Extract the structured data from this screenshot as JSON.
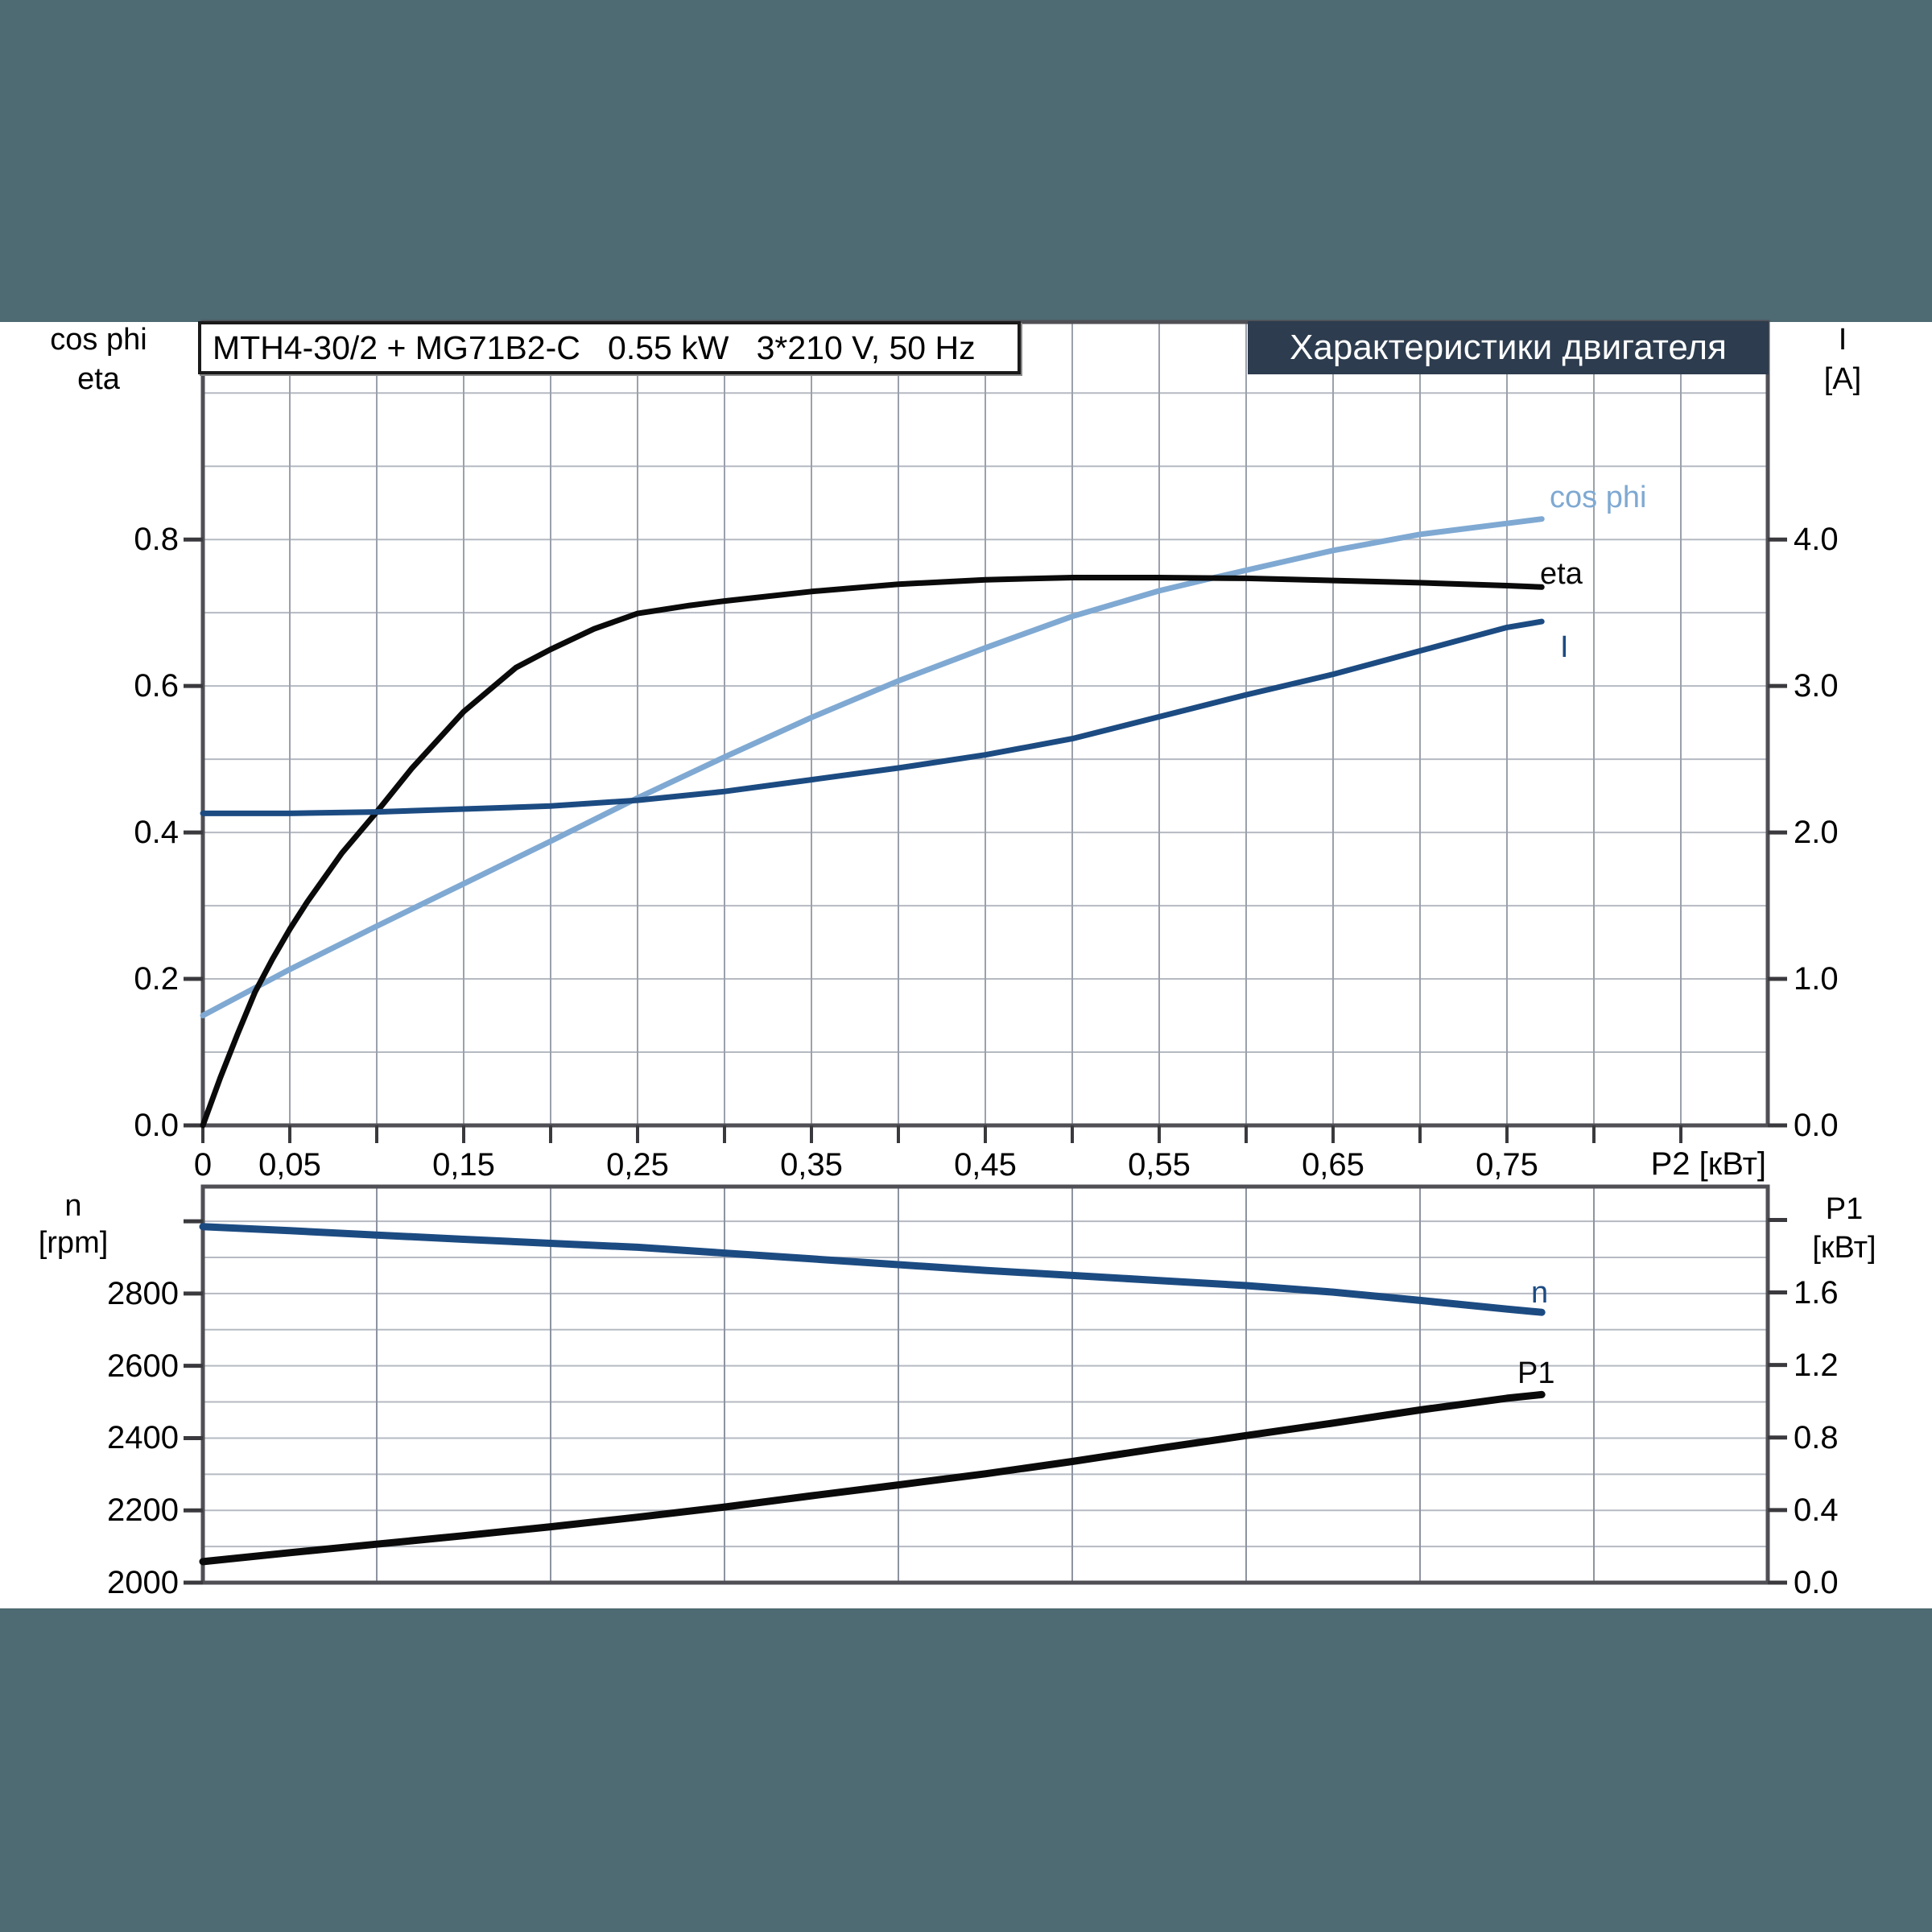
{
  "colors": {
    "background": "#4e6a72",
    "content_bg": "#ffffff",
    "banner_bg": "#2d3c4e",
    "banner_text": "#ffffff",
    "frame": "#4f4f55",
    "grid": "#9ba1ab",
    "grid_light": "#b5bac2",
    "tick": "#3a3a3e",
    "eta_curve": "#0a0a0a",
    "cos_phi_curve": "#7fa9d2",
    "current_curve": "#1c4b82",
    "speed_curve": "#1c4b82",
    "p1_curve": "#0a0a0a"
  },
  "header": {
    "title_box": "MTH4-30/2 + MG71B2-C   0.55 kW   3*210 V, 50 Hz",
    "banner": "Характеристики двигателя"
  },
  "chart_data": [
    {
      "id": "motor-characteristics",
      "type": "line",
      "title": "Характеристики двигателя",
      "left_axis": {
        "name": "cos phi",
        "name2": "eta",
        "range": [
          0,
          1.097
        ],
        "grid_step": 0.1,
        "ticks": [
          [
            0.0,
            "0.0"
          ],
          [
            0.2,
            "0.2"
          ],
          [
            0.4,
            "0.4"
          ],
          [
            0.6,
            "0.6"
          ],
          [
            0.8,
            "0.8"
          ]
        ]
      },
      "right_axis": {
        "name": "I",
        "unit": "[A]",
        "range": [
          0,
          5.485
        ],
        "grid_step": 0.5,
        "ticks": [
          [
            0.0,
            "0.0"
          ],
          [
            1.0,
            "1.0"
          ],
          [
            2.0,
            "2.0"
          ],
          [
            3.0,
            "3.0"
          ],
          [
            4.0,
            "4.0"
          ]
        ]
      },
      "x_axis": {
        "label": "P2 [кВт]",
        "range": [
          0,
          0.9
        ],
        "grid_step": 0.05,
        "minor_tick_step": 0.05,
        "ticks": [
          [
            0,
            "0"
          ],
          [
            0.05,
            "0,05"
          ],
          [
            0.15,
            "0,15"
          ],
          [
            0.25,
            "0,25"
          ],
          [
            0.35,
            "0,35"
          ],
          [
            0.45,
            "0,45"
          ],
          [
            0.55,
            "0,55"
          ],
          [
            0.65,
            "0,65"
          ],
          [
            0.75,
            "0,75"
          ]
        ]
      },
      "series": [
        {
          "name": "cos phi",
          "axis": "left",
          "color_key": "cos_phi_curve",
          "points": [
            [
              0,
              0.15
            ],
            [
              0.05,
              0.213
            ],
            [
              0.1,
              0.272
            ],
            [
              0.15,
              0.33
            ],
            [
              0.2,
              0.388
            ],
            [
              0.25,
              0.447
            ],
            [
              0.3,
              0.503
            ],
            [
              0.35,
              0.557
            ],
            [
              0.4,
              0.607
            ],
            [
              0.45,
              0.652
            ],
            [
              0.5,
              0.695
            ],
            [
              0.55,
              0.73
            ],
            [
              0.58,
              0.747
            ],
            [
              0.6,
              0.758
            ],
            [
              0.65,
              0.785
            ],
            [
              0.7,
              0.807
            ],
            [
              0.75,
              0.822
            ],
            [
              0.77,
              0.828
            ]
          ]
        },
        {
          "name": "eta",
          "axis": "left",
          "color_key": "eta_curve",
          "points": [
            [
              0,
              0
            ],
            [
              0.01,
              0.065
            ],
            [
              0.02,
              0.125
            ],
            [
              0.03,
              0.182
            ],
            [
              0.04,
              0.227
            ],
            [
              0.05,
              0.268
            ],
            [
              0.06,
              0.305
            ],
            [
              0.08,
              0.372
            ],
            [
              0.1,
              0.428
            ],
            [
              0.12,
              0.487
            ],
            [
              0.15,
              0.565
            ],
            [
              0.18,
              0.625
            ],
            [
              0.2,
              0.65
            ],
            [
              0.225,
              0.678
            ],
            [
              0.25,
              0.699
            ],
            [
              0.28,
              0.71
            ],
            [
              0.3,
              0.716
            ],
            [
              0.35,
              0.729
            ],
            [
              0.4,
              0.739
            ],
            [
              0.45,
              0.745
            ],
            [
              0.5,
              0.748
            ],
            [
              0.55,
              0.748
            ],
            [
              0.6,
              0.747
            ],
            [
              0.65,
              0.744
            ],
            [
              0.7,
              0.741
            ],
            [
              0.75,
              0.737
            ],
            [
              0.77,
              0.735
            ]
          ]
        },
        {
          "name": "I",
          "axis": "right",
          "color_key": "current_curve",
          "points": [
            [
              0,
              2.13
            ],
            [
              0.05,
              2.13
            ],
            [
              0.1,
              2.14
            ],
            [
              0.15,
              2.16
            ],
            [
              0.2,
              2.18
            ],
            [
              0.25,
              2.22
            ],
            [
              0.3,
              2.28
            ],
            [
              0.35,
              2.36
            ],
            [
              0.4,
              2.44
            ],
            [
              0.45,
              2.53
            ],
            [
              0.5,
              2.64
            ],
            [
              0.55,
              2.79
            ],
            [
              0.6,
              2.94
            ],
            [
              0.65,
              3.08
            ],
            [
              0.7,
              3.24
            ],
            [
              0.75,
              3.4
            ],
            [
              0.77,
              3.44
            ]
          ]
        }
      ]
    },
    {
      "id": "speed-power",
      "type": "line",
      "left_axis": {
        "name": "n",
        "unit": "[rpm]",
        "range": [
          2000,
          3096
        ],
        "grid_step": 100,
        "ticks": [
          [
            2000,
            "2000"
          ],
          [
            2200,
            "2200"
          ],
          [
            2400,
            "2400"
          ],
          [
            2600,
            "2600"
          ],
          [
            2800,
            "2800"
          ],
          [
            3000,
            ""
          ]
        ]
      },
      "right_axis": {
        "name": "P1",
        "unit": "[кВт]",
        "range": [
          0,
          2.184
        ],
        "grid_step": 0.2,
        "ticks": [
          [
            0.0,
            "0.0"
          ],
          [
            0.4,
            "0.4"
          ],
          [
            0.8,
            "0.8"
          ],
          [
            1.2,
            "1.2"
          ],
          [
            1.6,
            "1.6"
          ],
          [
            2.0,
            ""
          ]
        ]
      },
      "x_axis": {
        "label": "",
        "range": [
          0,
          0.9
        ],
        "grid_step": 0.1,
        "minor_tick_step": 0,
        "ticks": []
      },
      "series": [
        {
          "name": "n",
          "axis": "left",
          "color_key": "speed_curve",
          "points": [
            [
              0,
              2985
            ],
            [
              0.05,
              2974
            ],
            [
              0.1,
              2962
            ],
            [
              0.15,
              2950
            ],
            [
              0.2,
              2939
            ],
            [
              0.25,
              2928
            ],
            [
              0.3,
              2912
            ],
            [
              0.35,
              2896
            ],
            [
              0.4,
              2880
            ],
            [
              0.45,
              2864
            ],
            [
              0.5,
              2850
            ],
            [
              0.55,
              2836
            ],
            [
              0.6,
              2822
            ],
            [
              0.65,
              2804
            ],
            [
              0.7,
              2781
            ],
            [
              0.75,
              2757
            ],
            [
              0.77,
              2748
            ]
          ]
        },
        {
          "name": "P1",
          "axis": "right",
          "color_key": "p1_curve",
          "points": [
            [
              0,
              0.116
            ],
            [
              0.05,
              0.165
            ],
            [
              0.1,
              0.212
            ],
            [
              0.15,
              0.259
            ],
            [
              0.2,
              0.308
            ],
            [
              0.25,
              0.361
            ],
            [
              0.3,
              0.417
            ],
            [
              0.35,
              0.479
            ],
            [
              0.4,
              0.539
            ],
            [
              0.45,
              0.6
            ],
            [
              0.5,
              0.668
            ],
            [
              0.55,
              0.741
            ],
            [
              0.6,
              0.811
            ],
            [
              0.65,
              0.88
            ],
            [
              0.7,
              0.952
            ],
            [
              0.75,
              1.017
            ],
            [
              0.77,
              1.037
            ]
          ]
        }
      ]
    }
  ]
}
